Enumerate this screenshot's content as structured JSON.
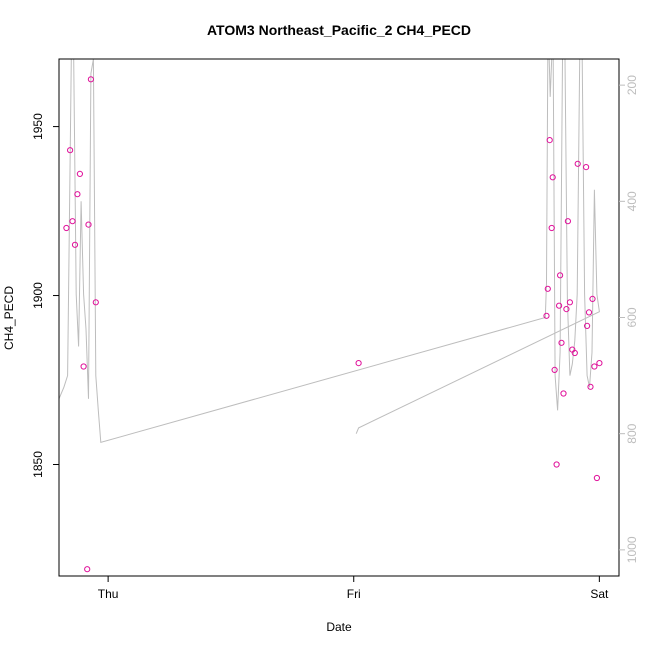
{
  "chart_data": {
    "type": "scatter",
    "title": "ATOM3 Northeast_Pacific_2 CH4_PECD",
    "xlabel": "Date",
    "ylabel": "CH4_PECD",
    "x_tick_labels": [
      "Thu",
      "Fri",
      "Sat"
    ],
    "y_ticks": [
      1850,
      1900,
      1950
    ],
    "y_right_ticks": [
      200,
      400,
      600,
      800,
      1000
    ],
    "xlim": [
      -0.2,
      2.08
    ],
    "ylim": [
      1817,
      1970
    ],
    "y_right_lim": [
      1045,
      155
    ],
    "grid": false,
    "legend": "none",
    "colors": {
      "points": "#e0109a",
      "line": "#bdbdbd",
      "axis": "#000000",
      "right_axis": "#bdbdbd"
    },
    "series": [
      {
        "type": "points",
        "x": [
          -0.17,
          -0.155,
          -0.145,
          -0.135,
          -0.125,
          -0.115,
          -0.1,
          -0.085,
          -0.08,
          -0.07,
          -0.05,
          1.02,
          1.785,
          1.79,
          1.798,
          1.806,
          1.81,
          1.818,
          1.826,
          1.836,
          1.84,
          1.846,
          1.854,
          1.866,
          1.872,
          1.88,
          1.89,
          1.9,
          1.912,
          1.946,
          1.95,
          1.958,
          1.964,
          1.972,
          1.98,
          1.99,
          2.0
        ],
        "y": [
          1920,
          1943,
          1922,
          1915,
          1930,
          1936,
          1879,
          1819,
          1921,
          1964,
          1898,
          1880,
          1894,
          1902,
          1946,
          1920,
          1935,
          1878,
          1850,
          1897,
          1906,
          1886,
          1871,
          1896,
          1922,
          1898,
          1884,
          1883,
          1939,
          1938,
          1891,
          1895,
          1873,
          1899,
          1879,
          1846,
          1880
        ]
      }
    ],
    "pressure_profile": {
      "type": "line",
      "x": [
        -0.2,
        -0.18,
        -0.165,
        -0.15,
        -0.14,
        -0.13,
        -0.12,
        -0.11,
        -0.1,
        -0.09,
        -0.08,
        -0.07,
        -0.06,
        -0.05,
        -0.04,
        -0.03,
        1.78,
        1.785,
        1.79,
        1.796,
        1.8,
        1.806,
        1.812,
        1.82,
        1.83,
        1.84,
        1.85,
        1.86,
        1.87,
        1.88,
        1.89,
        1.9,
        1.91,
        1.92,
        1.93,
        1.94,
        1.95,
        1.96,
        1.97,
        1.98,
        1.99,
        2.0,
        1.02,
        1.01
      ],
      "y": [
        740,
        720,
        700,
        155,
        155,
        560,
        650,
        400,
        560,
        620,
        740,
        180,
        155,
        700,
        760,
        815,
        600,
        540,
        155,
        155,
        220,
        155,
        155,
        700,
        760,
        660,
        155,
        155,
        570,
        700,
        680,
        640,
        560,
        155,
        155,
        560,
        700,
        720,
        660,
        380,
        560,
        590,
        790,
        800
      ]
    }
  }
}
